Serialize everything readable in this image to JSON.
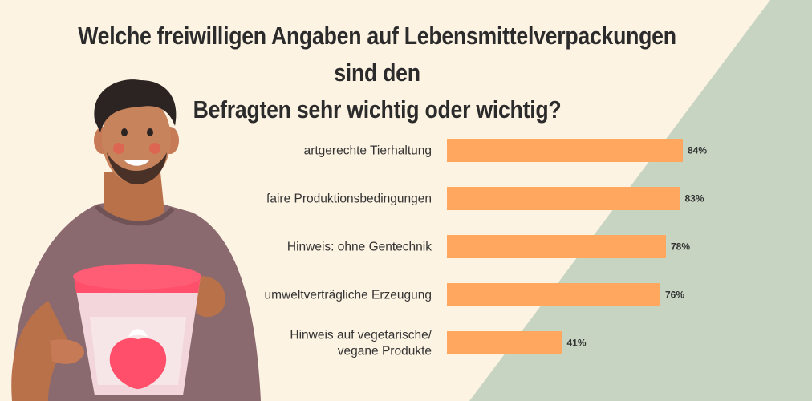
{
  "title_line1": "Welche freiwilligen Angaben auf Lebensmittelverpackungen sind den",
  "title_line2": "Befragten sehr wichtig oder wichtig?",
  "colors": {
    "background": "#fdf3e3",
    "triangle": "#c6d4c1",
    "bar": "#ffa75e",
    "text": "#333333"
  },
  "chart_data": {
    "type": "bar",
    "orientation": "horizontal",
    "title": "Welche freiwilligen Angaben auf Lebensmittelverpackungen sind den Befragten sehr wichtig oder wichtig?",
    "categories": [
      [
        "artgerechte Tierhaltung"
      ],
      [
        "faire Produktionsbedingungen"
      ],
      [
        "Hinweis: ohne Gentechnik"
      ],
      [
        "umweltverträgliche Erzeugung"
      ],
      [
        "Hinweis auf vegetarische/",
        "vegane Produkte"
      ]
    ],
    "values": [
      84,
      83,
      78,
      76,
      41
    ],
    "value_labels": [
      "84%",
      "83%",
      "78%",
      "76%",
      "41%"
    ],
    "unit": "%",
    "xlim": [
      0,
      100
    ],
    "grid": false,
    "legend": "none"
  }
}
